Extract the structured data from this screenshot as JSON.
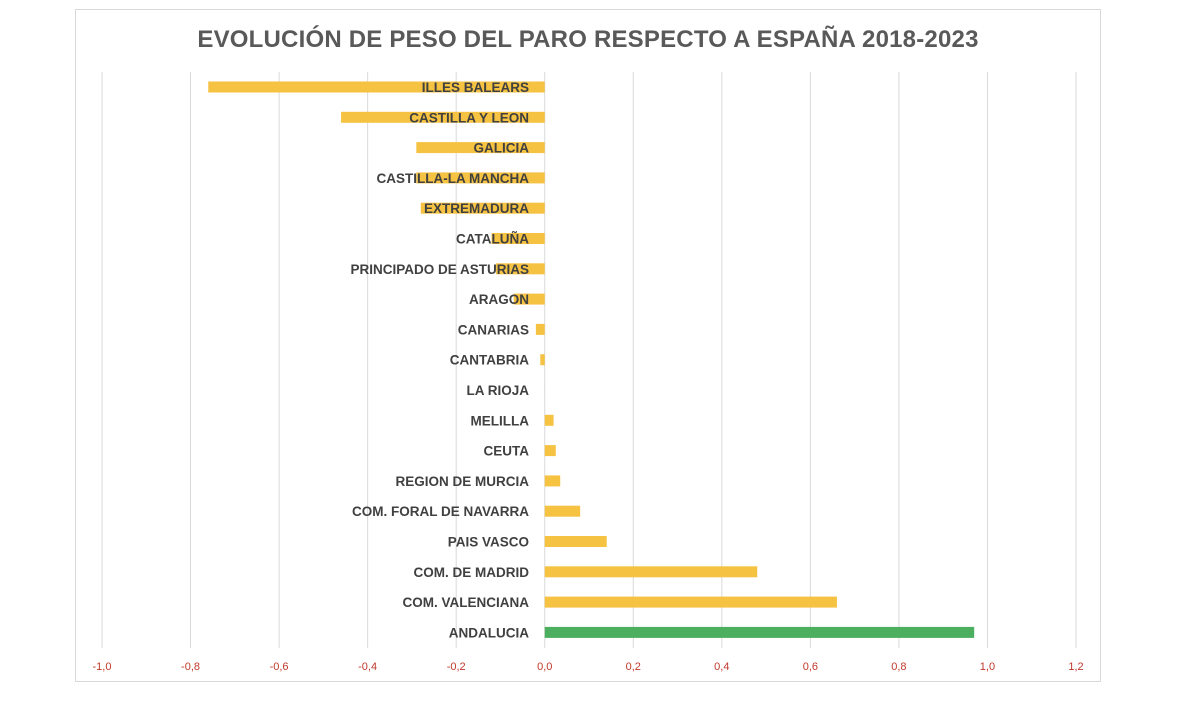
{
  "chart_data": {
    "type": "bar",
    "orientation": "horizontal",
    "title": "EVOLUCIÓN DE PESO DEL PARO RESPECTO A ESPAÑA 2018-2023",
    "xlabel": "",
    "ylabel": "",
    "xlim": [
      -1.0,
      1.2
    ],
    "grid": true,
    "tick_values": [
      -1.0,
      -0.8,
      -0.6,
      -0.4,
      -0.2,
      0.0,
      0.2,
      0.4,
      0.6,
      0.8,
      1.0,
      1.2
    ],
    "tick_labels": [
      "-1,0",
      "-0,8",
      "-0,6",
      "-0,4",
      "-0,2",
      "0,0",
      "0,2",
      "0,4",
      "0,6",
      "0,8",
      "1,0",
      "1,2"
    ],
    "categories": [
      "ILLES BALEARS",
      "CASTILLA Y LEON",
      "GALICIA",
      "CASTILLA-LA MANCHA",
      "EXTREMADURA",
      "CATALUÑA",
      "PRINCIPADO DE ASTURIAS",
      "ARAGON",
      "CANARIAS",
      "CANTABRIA",
      "LA RIOJA",
      "MELILLA",
      "CEUTA",
      "REGION DE MURCIA",
      "COM. FORAL DE NAVARRA",
      "PAIS VASCO",
      "COM. DE MADRID",
      "COM. VALENCIANA",
      "ANDALUCIA"
    ],
    "values": [
      -0.76,
      -0.46,
      -0.29,
      -0.29,
      -0.28,
      -0.12,
      -0.11,
      -0.07,
      -0.02,
      -0.01,
      0.0,
      0.02,
      0.025,
      0.035,
      0.08,
      0.14,
      0.48,
      0.66,
      0.97
    ],
    "colors": [
      "#f5c242",
      "#f5c242",
      "#f5c242",
      "#f5c242",
      "#f5c242",
      "#f5c242",
      "#f5c242",
      "#f5c242",
      "#f5c242",
      "#f5c242",
      "#f5c242",
      "#f5c242",
      "#f5c242",
      "#f5c242",
      "#f5c242",
      "#f5c242",
      "#f5c242",
      "#f5c242",
      "#4caf5f"
    ],
    "gridline_color": "#d9d9d9"
  }
}
